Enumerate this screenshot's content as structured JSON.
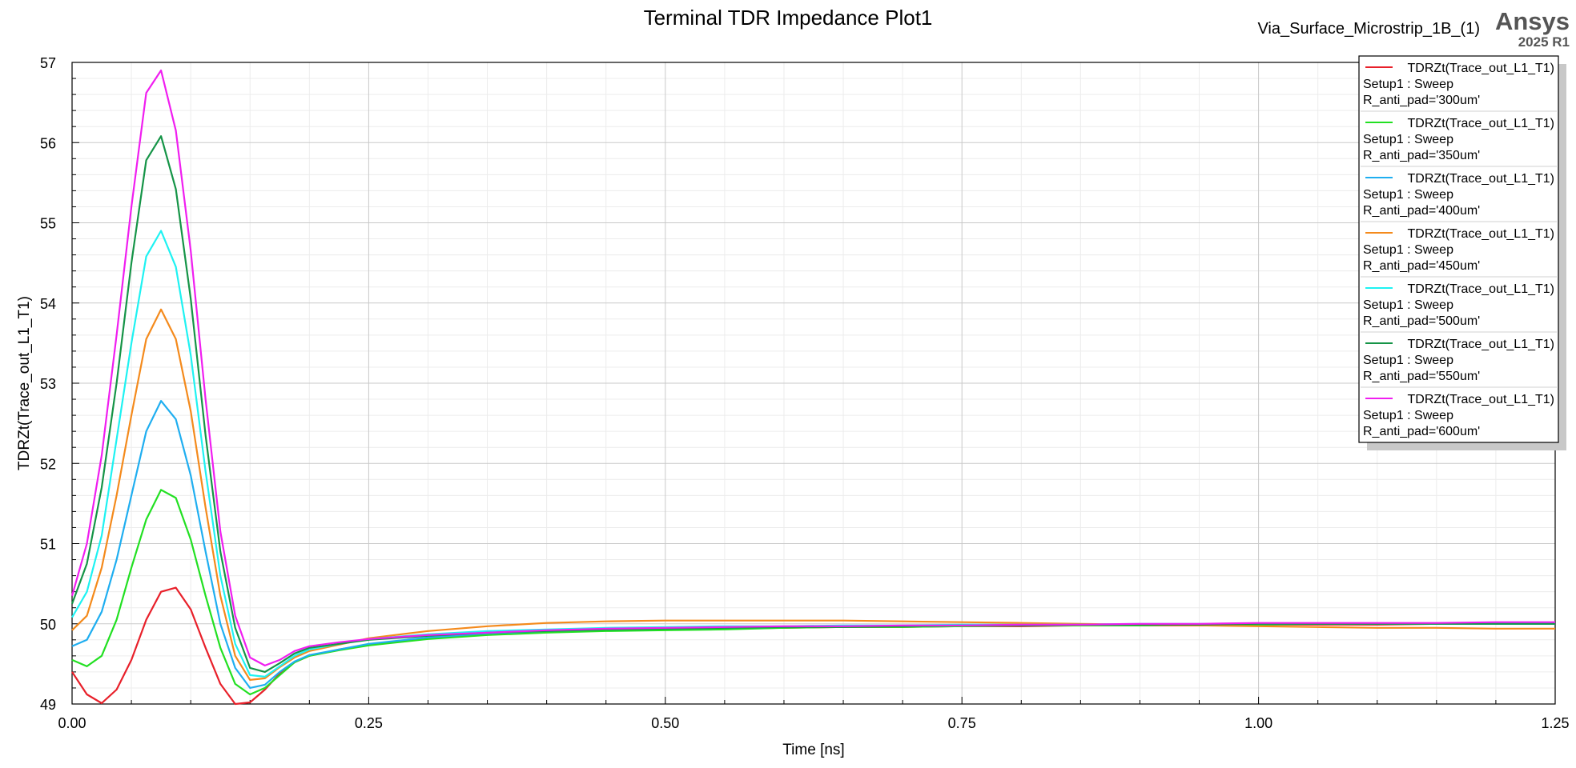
{
  "header": {
    "design_name": "Via_Surface_Microstrip_1B_(1)",
    "brand": "Ansys",
    "version": "2025 R1"
  },
  "chart_data": {
    "type": "line",
    "title": "Terminal TDR Impedance Plot1",
    "xlabel": "Time [ns]",
    "ylabel": "TDRZt(Trace_out_L1_T1)",
    "xlim": [
      0,
      1.25
    ],
    "ylim": [
      49,
      57
    ],
    "xticks": [
      "0.00",
      "0.25",
      "0.50",
      "0.75",
      "1.00",
      "1.25"
    ],
    "yticks": [
      "49",
      "50",
      "51",
      "52",
      "53",
      "54",
      "55",
      "56",
      "57"
    ],
    "grid": true,
    "legend_position": "top-right",
    "x": [
      0,
      0.0125,
      0.025,
      0.0375,
      0.05,
      0.0625,
      0.075,
      0.0875,
      0.1,
      0.1125,
      0.125,
      0.1375,
      0.15,
      0.1625,
      0.175,
      0.1875,
      0.2,
      0.225,
      0.25,
      0.3,
      0.35,
      0.4,
      0.45,
      0.5,
      0.55,
      0.6,
      0.65,
      0.7,
      0.75,
      0.8,
      0.85,
      0.9,
      0.95,
      1.0,
      1.05,
      1.1,
      1.15,
      1.2,
      1.25
    ],
    "series": [
      {
        "name": "TDRZt(Trace_out_L1_T1)",
        "setup": "Setup1 : Sweep",
        "param": "R_anti_pad='300um'",
        "color": "#e8202a",
        "values": [
          49.4,
          49.12,
          49.01,
          49.18,
          49.55,
          50.05,
          50.4,
          50.45,
          50.18,
          49.7,
          49.25,
          49.0,
          49.02,
          49.18,
          49.38,
          49.52,
          49.6,
          49.68,
          49.74,
          49.82,
          49.87,
          49.9,
          49.92,
          49.93,
          49.94,
          49.95,
          49.96,
          49.96,
          49.97,
          49.97,
          49.98,
          49.98,
          49.98,
          49.99,
          49.99,
          49.99,
          50.0,
          50.0,
          50.0
        ]
      },
      {
        "name": "TDRZt(Trace_out_L1_T1)",
        "setup": "Setup1 : Sweep",
        "param": "R_anti_pad='350um'",
        "color": "#22e022",
        "values": [
          49.55,
          49.47,
          49.6,
          50.05,
          50.7,
          51.3,
          51.67,
          51.57,
          51.05,
          50.35,
          49.7,
          49.25,
          49.12,
          49.2,
          49.36,
          49.52,
          49.6,
          49.67,
          49.73,
          49.81,
          49.86,
          49.89,
          49.91,
          49.92,
          49.93,
          49.95,
          49.96,
          49.96,
          49.97,
          49.98,
          49.98,
          49.98,
          49.99,
          49.99,
          50.0,
          50.0,
          50.0,
          50.0,
          50.0
        ]
      },
      {
        "name": "TDRZt(Trace_out_L1_T1)",
        "setup": "Setup1 : Sweep",
        "param": "R_anti_pad='400um'",
        "color": "#1faef0",
        "values": [
          49.72,
          49.8,
          50.15,
          50.8,
          51.6,
          52.4,
          52.78,
          52.55,
          51.85,
          50.9,
          50.0,
          49.45,
          49.2,
          49.24,
          49.4,
          49.53,
          49.61,
          49.68,
          49.75,
          49.83,
          49.88,
          49.91,
          49.93,
          49.94,
          49.95,
          49.96,
          49.97,
          49.97,
          49.98,
          49.98,
          49.99,
          49.99,
          49.99,
          50.0,
          50.0,
          50.0,
          50.0,
          50.0,
          50.0
        ]
      },
      {
        "name": "TDRZt(Trace_out_L1_T1)",
        "setup": "Setup1 : Sweep",
        "param": "R_anti_pad='450um'",
        "color": "#f48a1c",
        "values": [
          49.92,
          50.1,
          50.7,
          51.6,
          52.6,
          53.55,
          53.92,
          53.55,
          52.65,
          51.45,
          50.35,
          49.6,
          49.3,
          49.32,
          49.46,
          49.58,
          49.66,
          49.74,
          49.82,
          49.91,
          49.97,
          50.01,
          50.03,
          50.04,
          50.04,
          50.04,
          50.04,
          50.03,
          50.02,
          50.01,
          50.0,
          49.99,
          49.98,
          49.97,
          49.96,
          49.95,
          49.95,
          49.94,
          49.94
        ]
      },
      {
        "name": "TDRZt(Trace_out_L1_T1)",
        "setup": "Setup1 : Sweep",
        "param": "R_anti_pad='500um'",
        "color": "#1ef2f2",
        "values": [
          50.08,
          50.4,
          51.1,
          52.3,
          53.5,
          54.58,
          54.9,
          54.45,
          53.35,
          51.9,
          50.6,
          49.75,
          49.36,
          49.34,
          49.47,
          49.6,
          49.68,
          49.75,
          49.81,
          49.87,
          49.91,
          49.93,
          49.95,
          49.96,
          49.97,
          49.97,
          49.98,
          49.98,
          49.99,
          49.99,
          49.99,
          50.0,
          50.0,
          50.0,
          50.0,
          50.0,
          50.0,
          50.0,
          50.0
        ]
      },
      {
        "name": "TDRZt(Trace_out_L1_T1)",
        "setup": "Setup1 : Sweep",
        "param": "R_anti_pad='550um'",
        "color": "#159447",
        "values": [
          50.25,
          50.75,
          51.7,
          53.0,
          54.5,
          55.78,
          56.08,
          55.42,
          54.05,
          52.35,
          50.9,
          49.95,
          49.45,
          49.4,
          49.51,
          49.63,
          49.7,
          49.75,
          49.8,
          49.85,
          49.89,
          49.91,
          49.93,
          49.94,
          49.95,
          49.96,
          49.96,
          49.97,
          49.98,
          49.98,
          49.99,
          49.99,
          49.99,
          50.0,
          50.0,
          50.0,
          50.0,
          50.0,
          50.0
        ]
      },
      {
        "name": "TDRZt(Trace_out_L1_T1)",
        "setup": "Setup1 : Sweep",
        "param": "R_anti_pad='600um'",
        "color": "#f01ef0",
        "values": [
          50.35,
          51.0,
          52.1,
          53.6,
          55.2,
          56.62,
          56.9,
          56.15,
          54.65,
          52.8,
          51.15,
          50.1,
          49.58,
          49.48,
          49.55,
          49.66,
          49.72,
          49.77,
          49.81,
          49.86,
          49.89,
          49.92,
          49.94,
          49.95,
          49.96,
          49.97,
          49.97,
          49.98,
          49.98,
          49.99,
          49.99,
          50.0,
          50.0,
          50.01,
          50.01,
          50.01,
          50.01,
          50.02,
          50.02
        ]
      }
    ]
  }
}
